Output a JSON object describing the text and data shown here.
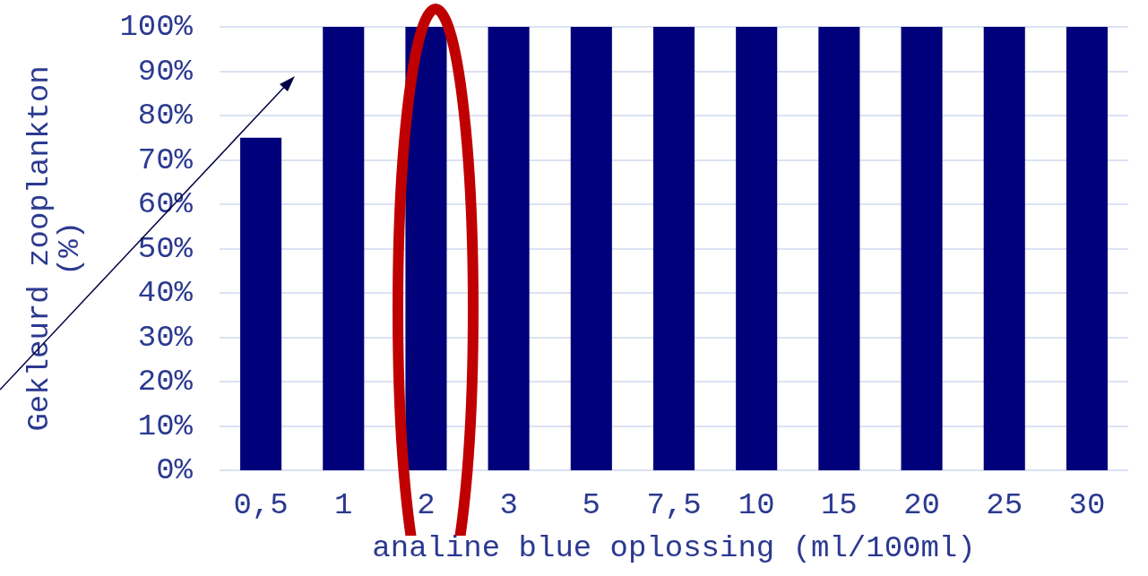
{
  "chart_data": {
    "type": "bar",
    "xlabel": "analine blue oplossing (ml/100ml)",
    "ylabel": "Gekleurd zooplankton\n(%)",
    "categories": [
      "0,5",
      "1",
      "2",
      "3",
      "5",
      "7,5",
      "10",
      "15",
      "20",
      "25",
      "30"
    ],
    "values": [
      75,
      100,
      100,
      100,
      100,
      100,
      100,
      100,
      100,
      100,
      100
    ],
    "color": "#00007a",
    "ylim": [
      0,
      100
    ],
    "yticks": [
      {
        "value": 0,
        "label": "0%"
      },
      {
        "value": 10,
        "label": "10%"
      },
      {
        "value": 20,
        "label": "20%"
      },
      {
        "value": 30,
        "label": "30%"
      },
      {
        "value": 40,
        "label": "40%"
      },
      {
        "value": 50,
        "label": "50%"
      },
      {
        "value": 60,
        "label": "60%"
      },
      {
        "value": 70,
        "label": "70%"
      },
      {
        "value": 80,
        "label": "80%"
      },
      {
        "value": 90,
        "label": "90%"
      },
      {
        "value": 100,
        "label": "100%"
      }
    ],
    "grid": "y"
  }
}
